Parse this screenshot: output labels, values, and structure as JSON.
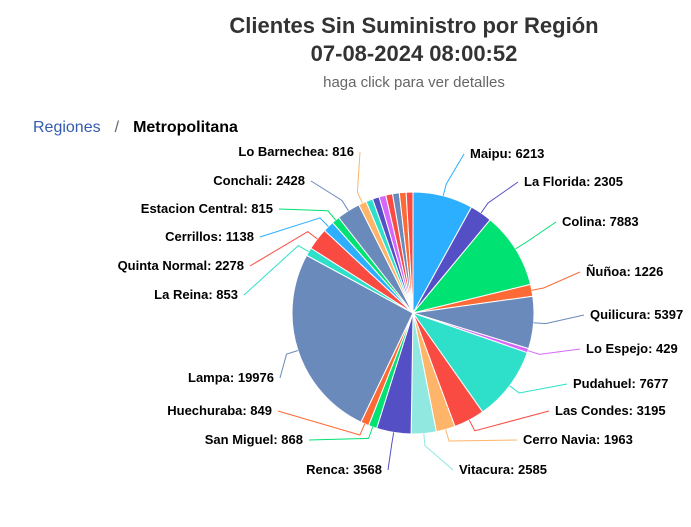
{
  "title_line1": "Clientes Sin Suministro por Región",
  "title_line2": "07-08-2024 08:00:52",
  "subtitle": "haga click para ver detalles",
  "breadcrumb": {
    "root": "Regiones",
    "separator": "/",
    "current": "Metropolitana"
  },
  "chart_data": {
    "type": "pie",
    "title": "Clientes Sin Suministro por Región 07-08-2024 08:00:52",
    "subtitle": "haga click para ver detalles",
    "slices": [
      {
        "label": "Maipu",
        "value": 6213,
        "color": "#2caffe"
      },
      {
        "label": "La Florida",
        "value": 2305,
        "color": "#544fc5"
      },
      {
        "label": "Colina",
        "value": 7883,
        "color": "#00e272"
      },
      {
        "label": "Ñuñoa",
        "value": 1226,
        "color": "#fe6a35"
      },
      {
        "label": "Quilicura",
        "value": 5397,
        "color": "#6b8abc"
      },
      {
        "label": "Lo Espejo",
        "value": 429,
        "color": "#d568fb"
      },
      {
        "label": "Pudahuel",
        "value": 7677,
        "color": "#2ee0ca"
      },
      {
        "label": "Las Condes",
        "value": 3195,
        "color": "#fa4b42"
      },
      {
        "label": "Cerro Navia",
        "value": 1963,
        "color": "#feb56a"
      },
      {
        "label": "Vitacura",
        "value": 2585,
        "color": "#91e8e1"
      },
      {
        "label": "Renca",
        "value": 3568,
        "color": "#544fc5"
      },
      {
        "label": "San Miguel",
        "value": 868,
        "color": "#00e272"
      },
      {
        "label": "Huechuraba",
        "value": 849,
        "color": "#fe6a35"
      },
      {
        "label": "Lampa",
        "value": 19976,
        "color": "#6b8abc"
      },
      {
        "label": "La Reina",
        "value": 853,
        "color": "#2ee0ca"
      },
      {
        "label": "Quinta Normal",
        "value": 2278,
        "color": "#fa4b42"
      },
      {
        "label": "Cerrillos",
        "value": 1138,
        "color": "#2caffe"
      },
      {
        "label": "Estacion Central",
        "value": 815,
        "color": "#00e272"
      },
      {
        "label": "Conchali",
        "value": 2428,
        "color": "#6b8abc"
      },
      {
        "label": "Lo Barnechea",
        "value": 816,
        "color": "#feb56a"
      },
      {
        "label": "",
        "value": 700,
        "color": "#2ee0ca"
      },
      {
        "label": "",
        "value": 700,
        "color": "#544fc5"
      },
      {
        "label": "",
        "value": 700,
        "color": "#d568fb"
      },
      {
        "label": "",
        "value": 700,
        "color": "#fa4b42"
      },
      {
        "label": "",
        "value": 700,
        "color": "#6b8abc"
      },
      {
        "label": "",
        "value": 700,
        "color": "#fe6a35"
      },
      {
        "label": "",
        "value": 700,
        "color": "#fa4b42"
      }
    ]
  }
}
